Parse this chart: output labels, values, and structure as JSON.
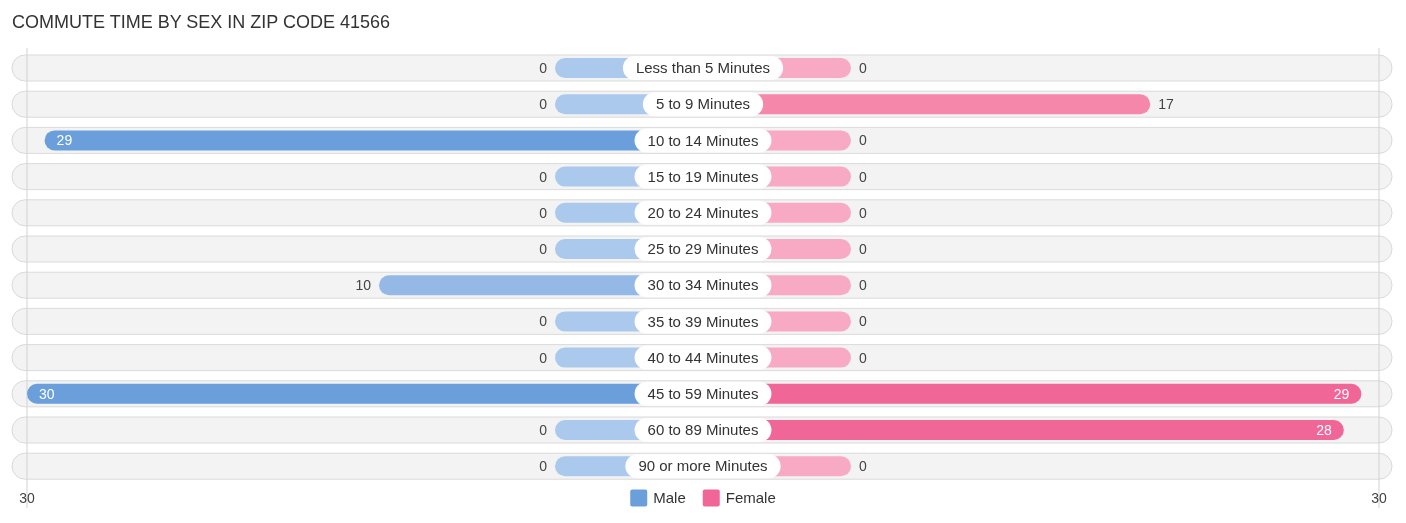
{
  "chart_data": [
    {
      "type": "bar",
      "orientation": "horizontal",
      "title": "COMMUTE TIME BY SEX IN ZIP CODE 41566",
      "categories": [
        "Less than 5 Minutes",
        "5 to 9 Minutes",
        "10 to 14 Minutes",
        "15 to 19 Minutes",
        "20 to 24 Minutes",
        "25 to 29 Minutes",
        "30 to 34 Minutes",
        "35 to 39 Minutes",
        "40 to 44 Minutes",
        "45 to 59 Minutes",
        "60 to 89 Minutes",
        "90 or more Minutes"
      ],
      "series": [
        {
          "name": "Male",
          "color": "#6a9fdc",
          "colors": [
            "#abc9ed",
            "#abc9ed",
            "#6a9fdc",
            "#abc9ed",
            "#abc9ed",
            "#abc9ed",
            "#95b9e7",
            "#abc9ed",
            "#abc9ed",
            "#6a9fdc",
            "#abc9ed",
            "#abc9ed"
          ],
          "values": [
            0,
            0,
            29,
            0,
            0,
            0,
            10,
            0,
            0,
            30,
            0,
            0
          ]
        }
      ],
      "xlim": [
        30,
        0
      ],
      "xticks": [
        30
      ],
      "legend": "bottom",
      "data_labels": true,
      "tick_labels": "x"
    },
    {
      "type": "bar",
      "orientation": "horizontal",
      "categories": [
        "Less than 5 Minutes",
        "5 to 9 Minutes",
        "10 to 14 Minutes",
        "15 to 19 Minutes",
        "20 to 24 Minutes",
        "25 to 29 Minutes",
        "30 to 34 Minutes",
        "35 to 39 Minutes",
        "40 to 44 Minutes",
        "45 to 59 Minutes",
        "60 to 89 Minutes",
        "90 or more Minutes"
      ],
      "series": [
        {
          "name": "Female",
          "color": "#f06697",
          "colors": [
            "#f8aac4",
            "#f587aa",
            "#f8aac4",
            "#f8aac4",
            "#f8aac4",
            "#f8aac4",
            "#f8aac4",
            "#f8aac4",
            "#f8aac4",
            "#f06697",
            "#f06697",
            "#f8aac4"
          ],
          "values": [
            0,
            17,
            0,
            0,
            0,
            0,
            0,
            0,
            0,
            29,
            28,
            0
          ]
        }
      ],
      "xlim": [
        0,
        30
      ],
      "xticks": [
        30
      ],
      "legend": "bottom",
      "data_labels": true
    }
  ]
}
